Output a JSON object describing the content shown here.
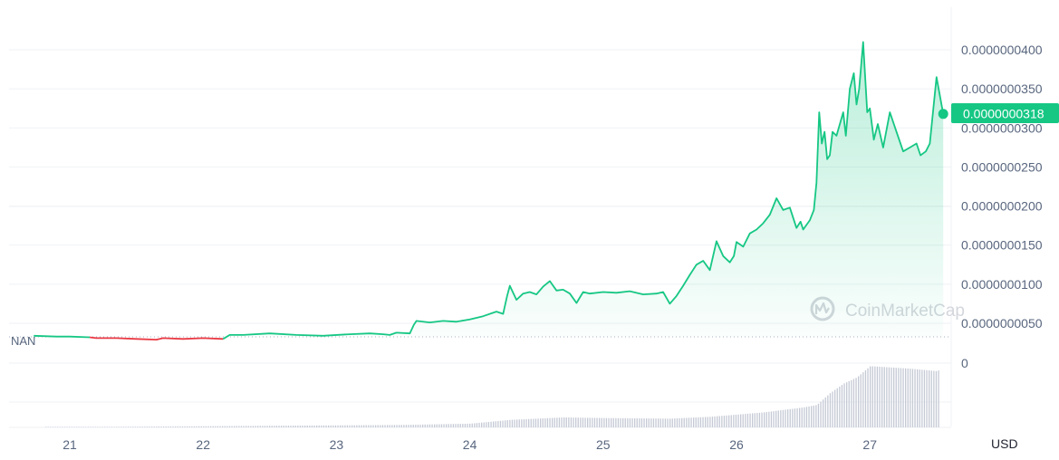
{
  "chart_data": {
    "type": "area",
    "currency_label": "USD",
    "watermark_text": "CoinMarketCap",
    "baseline_label": "NAN",
    "price_badge": "0.0000000318",
    "x_ticks": [
      "21",
      "22",
      "23",
      "24",
      "25",
      "26",
      "27"
    ],
    "y_ticks": [
      {
        "label": "0.0000000050",
        "value": 5e-09
      },
      {
        "label": "0.0000000100",
        "value": 1e-08
      },
      {
        "label": "0.0000000150",
        "value": 1.5e-08
      },
      {
        "label": "0.0000000200",
        "value": 2e-08
      },
      {
        "label": "0.0000000250",
        "value": 2.5e-08
      },
      {
        "label": "0.0000000300",
        "value": 3e-08
      },
      {
        "label": "0.0000000350",
        "value": 3.5e-08
      },
      {
        "label": "0.0000000400",
        "value": 4e-08
      }
    ],
    "volume_axis_label": "0",
    "ylim": [
      1.5e-09,
      4.05e-08
    ],
    "xlim": [
      20.73,
      27.75
    ],
    "grid": true,
    "colors": {
      "up": "#16c784",
      "down": "#ea3943",
      "badge": "#16c784"
    },
    "series": [
      {
        "x": [
          20.73,
          20.9,
          21.0,
          21.15,
          21.2,
          21.35,
          21.5,
          21.65,
          21.7,
          21.85,
          22.0,
          22.15,
          22.2,
          22.3,
          22.5,
          22.7,
          22.9,
          23.1,
          23.25,
          23.35,
          23.4,
          23.45,
          23.55,
          23.58,
          23.6,
          23.7,
          23.8,
          23.9,
          24.0,
          24.1,
          24.2,
          24.25,
          24.28,
          24.3,
          24.35,
          24.4,
          24.45,
          24.5,
          24.55,
          24.6,
          24.65,
          24.7,
          24.75,
          24.8,
          24.85,
          24.9,
          25.0,
          25.1,
          25.2,
          25.3,
          25.4,
          25.45,
          25.5,
          25.55,
          25.6,
          25.65,
          25.7,
          25.75,
          25.8,
          25.85,
          25.9,
          25.95,
          25.98,
          26.0,
          26.05,
          26.1,
          26.15,
          26.2,
          26.25,
          26.3,
          26.35,
          26.4,
          26.45,
          26.48,
          26.5,
          26.55,
          26.58,
          26.6,
          26.62,
          26.64,
          26.66,
          26.68,
          26.7,
          26.72,
          26.75,
          26.8,
          26.82,
          26.85,
          26.88,
          26.9,
          26.92,
          26.95,
          26.98,
          27.0,
          27.03,
          27.06,
          27.1,
          27.15,
          27.2,
          27.25,
          27.3,
          27.35,
          27.38,
          27.42,
          27.45,
          27.5,
          27.55
        ],
        "y": [
          3.4e-09,
          3.3e-09,
          3.3e-09,
          3.2e-09,
          3.1e-09,
          3.1e-09,
          3e-09,
          2.9e-09,
          3.1e-09,
          3e-09,
          3.1e-09,
          3e-09,
          3.5e-09,
          3.5e-09,
          3.7e-09,
          3.5e-09,
          3.4e-09,
          3.6e-09,
          3.7e-09,
          3.6e-09,
          3.5e-09,
          3.8e-09,
          3.7e-09,
          4.8e-09,
          5.3e-09,
          5.1e-09,
          5.3e-09,
          5.2e-09,
          5.5e-09,
          5.9e-09,
          6.5e-09,
          6.2e-09,
          8.5e-09,
          9.8e-09,
          8e-09,
          8.8e-09,
          9e-09,
          8.7e-09,
          9.7e-09,
          1.04e-08,
          9.2e-09,
          9.3e-09,
          8.8e-09,
          7.6e-09,
          9e-09,
          8.8e-09,
          9e-09,
          8.9e-09,
          9.1e-09,
          8.7e-09,
          8.8e-09,
          9e-09,
          7.5e-09,
          8.5e-09,
          9.8e-09,
          1.12e-08,
          1.25e-08,
          1.3e-08,
          1.18e-08,
          1.55e-08,
          1.36e-08,
          1.28e-08,
          1.36e-08,
          1.54e-08,
          1.48e-08,
          1.65e-08,
          1.7e-08,
          1.78e-08,
          1.89e-08,
          2.1e-08,
          1.95e-08,
          1.98e-08,
          1.72e-08,
          1.8e-08,
          1.7e-08,
          1.82e-08,
          1.95e-08,
          2.3e-08,
          3.2e-08,
          2.8e-08,
          2.95e-08,
          2.6e-08,
          2.65e-08,
          2.95e-08,
          2.9e-08,
          3.2e-08,
          2.9e-08,
          3.5e-08,
          3.7e-08,
          3.3e-08,
          3.5e-08,
          4.1e-08,
          3.2e-08,
          3.25e-08,
          2.85e-08,
          3.05e-08,
          2.75e-08,
          3.2e-08,
          2.95e-08,
          2.7e-08,
          2.75e-08,
          2.8e-08,
          2.65e-08,
          2.7e-08,
          2.8e-08,
          3.65e-08,
          3.18e-08
        ],
        "segments_down": [
          [
            21.15,
            22.15
          ]
        ]
      }
    ],
    "volume_profile": {
      "x": [
        20.73,
        23.5,
        24.0,
        24.3,
        24.7,
        25.0,
        25.5,
        25.8,
        26.2,
        26.5,
        26.6,
        26.7,
        26.8,
        26.9,
        27.0,
        27.3,
        27.5,
        27.55
      ],
      "v": [
        0.0,
        0.04,
        0.06,
        0.12,
        0.16,
        0.15,
        0.14,
        0.17,
        0.24,
        0.32,
        0.36,
        0.55,
        0.7,
        0.8,
        0.98,
        0.94,
        0.9,
        0.95
      ]
    }
  }
}
